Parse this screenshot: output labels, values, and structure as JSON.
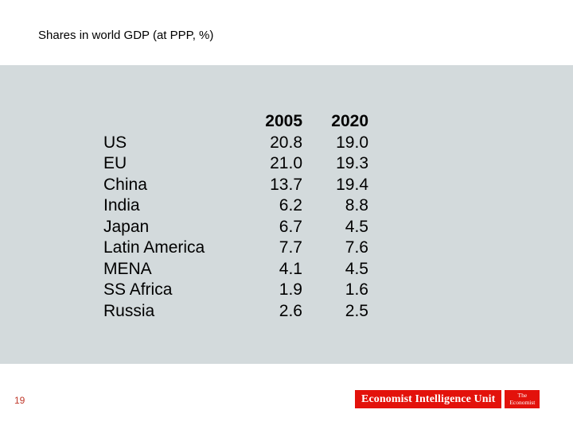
{
  "title": "Shares in world GDP (at PPP, %)",
  "page_number": "19",
  "footer": {
    "eiu_label": "Economist Intelligence Unit",
    "economist_top": "The",
    "economist_bottom": "Economist"
  },
  "colors": {
    "panel": "#d3dadc",
    "brand_red": "#e3120b",
    "page_number": "#c0392b"
  },
  "chart_data": {
    "type": "table",
    "title": "Shares in world GDP (at PPP, %)",
    "columns": [
      "2005",
      "2020"
    ],
    "rows": [
      {
        "label": "US",
        "values": [
          "20.8",
          "19.0"
        ]
      },
      {
        "label": "EU",
        "values": [
          "21.0",
          "19.3"
        ]
      },
      {
        "label": "China",
        "values": [
          "13.7",
          "19.4"
        ]
      },
      {
        "label": "India",
        "values": [
          "6.2",
          "8.8"
        ]
      },
      {
        "label": "Japan",
        "values": [
          "6.7",
          "4.5"
        ]
      },
      {
        "label": "Latin America",
        "values": [
          "7.7",
          "7.6"
        ]
      },
      {
        "label": "MENA",
        "values": [
          "4.1",
          "4.5"
        ]
      },
      {
        "label": "SS Africa",
        "values": [
          "1.9",
          "1.6"
        ]
      },
      {
        "label": "Russia",
        "values": [
          "2.6",
          "2.5"
        ]
      }
    ]
  }
}
